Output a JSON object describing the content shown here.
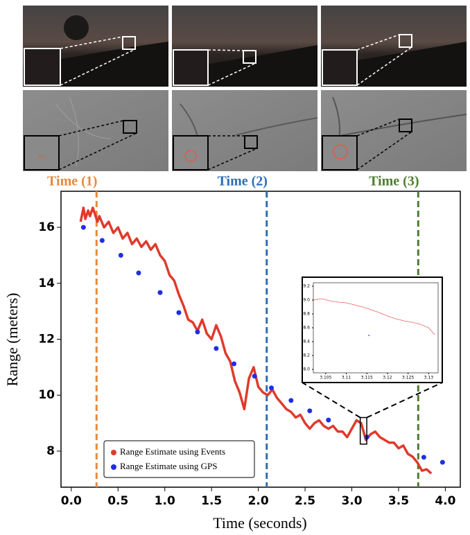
{
  "chart_data": [
    {
      "type": "line",
      "xlabel": "Time (seconds)",
      "ylabel": "Range (meters)",
      "xlim": [
        -0.11,
        4.16
      ],
      "ylim": [
        6.71,
        17.29
      ],
      "xticks": [
        {
          "value": 0,
          "label": "0.0"
        },
        {
          "value": 0.5,
          "label": "0.5"
        },
        {
          "value": 1,
          "label": "1.0"
        },
        {
          "value": 1.5,
          "label": "1.5"
        },
        {
          "value": 2,
          "label": "2.0"
        },
        {
          "value": 2.5,
          "label": "2.5"
        },
        {
          "value": 3,
          "label": "3.0"
        },
        {
          "value": 3.5,
          "label": "3.5"
        },
        {
          "value": 4,
          "label": "4.0"
        }
      ],
      "yticks": [
        8,
        10,
        12,
        14,
        16
      ],
      "legend": "lower left",
      "series": [
        {
          "name": "Range Estimate using Events",
          "color": "#e03a2c",
          "style": "line",
          "x": [
            0.1,
            0.13,
            0.15,
            0.18,
            0.2,
            0.23,
            0.25,
            0.28,
            0.3,
            0.35,
            0.4,
            0.45,
            0.5,
            0.55,
            0.6,
            0.65,
            0.7,
            0.75,
            0.8,
            0.85,
            0.9,
            0.95,
            1.0,
            1.05,
            1.1,
            1.15,
            1.2,
            1.25,
            1.3,
            1.35,
            1.4,
            1.45,
            1.5,
            1.55,
            1.6,
            1.65,
            1.7,
            1.75,
            1.8,
            1.85,
            1.9,
            1.95,
            2.0,
            2.05,
            2.1,
            2.15,
            2.2,
            2.25,
            2.3,
            2.35,
            2.4,
            2.45,
            2.5,
            2.55,
            2.6,
            2.65,
            2.7,
            2.75,
            2.8,
            2.85,
            2.9,
            2.95,
            3.0,
            3.05,
            3.1,
            3.15,
            3.2,
            3.25,
            3.3,
            3.35,
            3.4,
            3.45,
            3.5,
            3.55,
            3.6,
            3.65,
            3.7,
            3.75,
            3.8,
            3.85
          ],
          "values": [
            16.2,
            16.7,
            16.3,
            16.6,
            16.4,
            16.7,
            16.5,
            16.2,
            16.4,
            16.0,
            16.2,
            15.8,
            16.0,
            15.6,
            15.8,
            15.4,
            15.6,
            15.3,
            15.5,
            15.2,
            15.4,
            15.0,
            14.8,
            14.3,
            14.1,
            13.6,
            13.2,
            12.7,
            12.6,
            12.3,
            12.7,
            12.2,
            12.0,
            12.5,
            12.1,
            11.5,
            11.2,
            10.5,
            10.1,
            9.5,
            10.6,
            11.0,
            10.3,
            10.1,
            10.0,
            10.2,
            9.9,
            9.7,
            9.5,
            9.4,
            9.2,
            9.3,
            9.0,
            8.8,
            9.0,
            9.1,
            8.9,
            8.8,
            8.9,
            8.7,
            8.7,
            8.5,
            8.8,
            9.1,
            9.0,
            8.4,
            8.6,
            8.7,
            8.5,
            8.4,
            8.3,
            8.3,
            8.1,
            8.2,
            7.9,
            7.8,
            7.6,
            7.3,
            7.35,
            7.2
          ]
        },
        {
          "name": "Range Estimate using GPS",
          "color": "#1f2ee6",
          "style": "points",
          "x": [
            0.13,
            0.33,
            0.53,
            0.72,
            0.95,
            1.15,
            1.35,
            1.55,
            1.74,
            1.96,
            2.14,
            2.35,
            2.55,
            2.75,
            3.16,
            3.77,
            3.97
          ],
          "values": [
            16.0,
            15.53,
            15.0,
            14.37,
            13.67,
            12.95,
            12.26,
            11.67,
            11.12,
            10.68,
            10.26,
            9.81,
            9.44,
            9.11,
            8.5,
            7.78,
            7.6
          ]
        }
      ],
      "vlines": [
        {
          "x": 0.27,
          "label": "Time (1)",
          "color": "#e8883a"
        },
        {
          "x": 2.09,
          "label": "Time (2)",
          "color": "#2e6db5"
        },
        {
          "x": 3.71,
          "label": "Time (3)",
          "color": "#4e7d32"
        }
      ],
      "zoom_box": {
        "xlim": [
          3.09,
          3.16
        ],
        "ylim": [
          8.25,
          9.2
        ]
      }
    },
    {
      "type": "line",
      "xlim": [
        3.102,
        3.1323
      ],
      "ylim": [
        7.95,
        9.25
      ],
      "xticks": [
        3.105,
        3.11,
        3.115,
        3.12,
        3.125,
        3.13
      ],
      "yticks": [
        {
          "value": 8,
          "label": "8.0"
        },
        {
          "value": 8.2,
          "label": "8.2"
        },
        {
          "value": 8.4,
          "label": "8.4"
        },
        {
          "value": 8.6,
          "label": "8.6"
        },
        {
          "value": 8.8,
          "label": "8.8"
        },
        {
          "value": 9,
          "label": "9.0"
        },
        {
          "value": 9.2,
          "label": "9.2"
        }
      ],
      "series": [
        {
          "color": "#e03a2c",
          "style": "line",
          "x": [
            3.102,
            3.104,
            3.106,
            3.108,
            3.11,
            3.112,
            3.114,
            3.116,
            3.118,
            3.12,
            3.122,
            3.124,
            3.126,
            3.128,
            3.13,
            3.1315
          ],
          "values": [
            9.0,
            9.02,
            8.99,
            8.97,
            8.96,
            8.93,
            8.9,
            8.86,
            8.82,
            8.77,
            8.73,
            8.7,
            8.68,
            8.65,
            8.6,
            8.5
          ]
        },
        {
          "color": "#1f2ee6",
          "style": "points",
          "x": [
            3.1155
          ],
          "values": [
            8.49
          ]
        }
      ]
    }
  ]
}
